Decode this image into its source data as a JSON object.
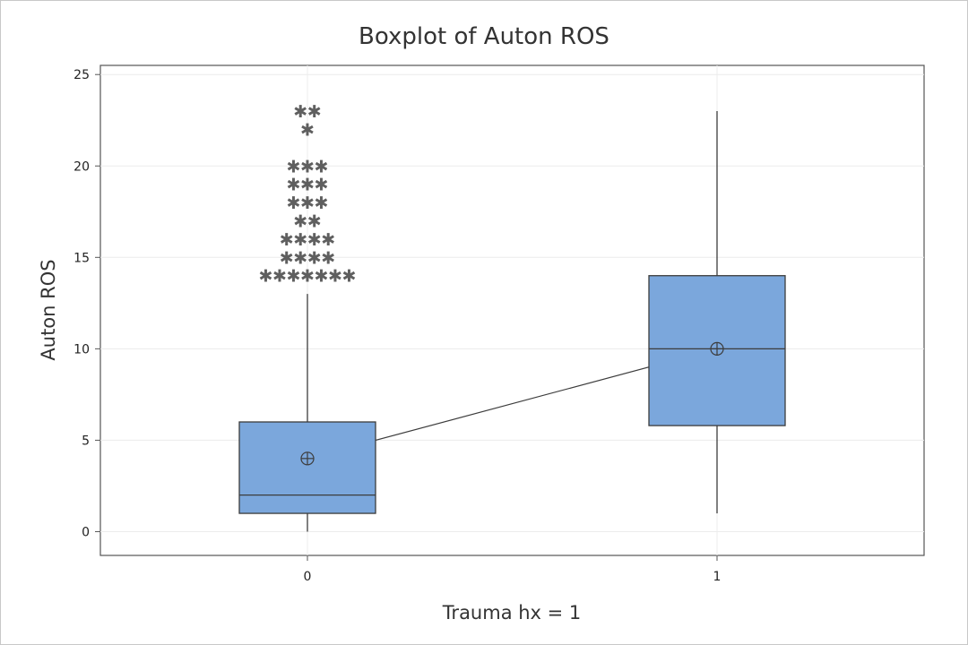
{
  "chart_data": {
    "type": "boxplot",
    "title": "Boxplot of Auton ROS",
    "xlabel": "Trauma hx = 1",
    "ylabel": "Auton ROS",
    "ylim": [
      -1.3,
      25.5
    ],
    "yticks": [
      0,
      5,
      10,
      15,
      20,
      25
    ],
    "grid": true,
    "categories": [
      "0",
      "1"
    ],
    "boxes": [
      {
        "category": "0",
        "whisker_low": 0,
        "q1": 1,
        "median": 2,
        "q3": 6,
        "whisker_high": 13,
        "mean": 4,
        "outliers": [
          {
            "value": 23,
            "count": 2
          },
          {
            "value": 22,
            "count": 1
          },
          {
            "value": 20,
            "count": 3
          },
          {
            "value": 19,
            "count": 3
          },
          {
            "value": 18,
            "count": 3
          },
          {
            "value": 17,
            "count": 2
          },
          {
            "value": 16,
            "count": 4
          },
          {
            "value": 15,
            "count": 4
          },
          {
            "value": 14,
            "count": 7
          }
        ]
      },
      {
        "category": "1",
        "whisker_low": 1,
        "q1": 5.8,
        "median": 10,
        "q3": 14,
        "whisker_high": 23,
        "mean": 10,
        "outliers": []
      }
    ],
    "mean_connect_line": true,
    "colors": {
      "box_fill": "#7ba7dc",
      "box_stroke": "#3c3c3c",
      "grid": "#ececec",
      "outlier": "#5f5f5f"
    }
  }
}
